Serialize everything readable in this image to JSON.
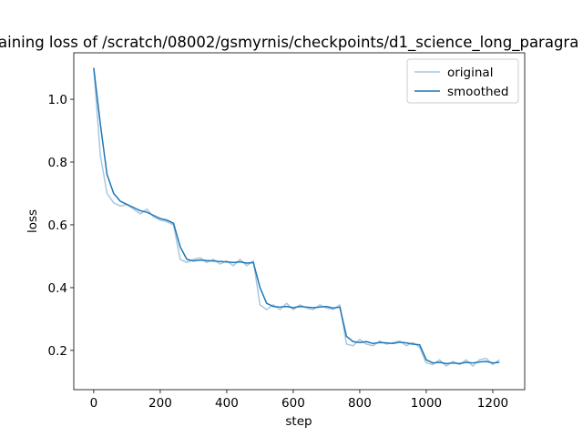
{
  "chart_data": {
    "type": "line",
    "title": "aining loss of /scratch/08002/gsmyrnis/checkpoints/d1_science_long_paragra",
    "x_label": "step",
    "y_label": "loss",
    "x": [
      0,
      20,
      40,
      60,
      80,
      100,
      120,
      140,
      160,
      180,
      200,
      220,
      240,
      260,
      280,
      300,
      320,
      340,
      360,
      380,
      400,
      420,
      440,
      460,
      480,
      500,
      520,
      540,
      560,
      580,
      600,
      620,
      640,
      660,
      680,
      700,
      720,
      740,
      760,
      780,
      800,
      820,
      840,
      860,
      880,
      900,
      920,
      940,
      960,
      980,
      1000,
      1020,
      1040,
      1060,
      1080,
      1100,
      1120,
      1140,
      1160,
      1180,
      1200,
      1220
    ],
    "series": [
      {
        "name": "original",
        "color": "#a6c8e1",
        "values": [
          1.1,
          0.82,
          0.7,
          0.67,
          0.66,
          0.665,
          0.65,
          0.635,
          0.65,
          0.625,
          0.615,
          0.61,
          0.6,
          0.49,
          0.48,
          0.49,
          0.495,
          0.48,
          0.49,
          0.475,
          0.485,
          0.47,
          0.49,
          0.47,
          0.485,
          0.345,
          0.33,
          0.345,
          0.33,
          0.35,
          0.33,
          0.345,
          0.335,
          0.33,
          0.345,
          0.335,
          0.33,
          0.345,
          0.22,
          0.215,
          0.235,
          0.22,
          0.215,
          0.23,
          0.22,
          0.225,
          0.23,
          0.215,
          0.225,
          0.21,
          0.16,
          0.155,
          0.17,
          0.15,
          0.165,
          0.155,
          0.17,
          0.15,
          0.17,
          0.175,
          0.155,
          0.17
        ]
      },
      {
        "name": "smoothed",
        "color": "#1f77b4",
        "values": [
          1.1,
          0.92,
          0.76,
          0.7,
          0.675,
          0.665,
          0.655,
          0.645,
          0.64,
          0.63,
          0.62,
          0.615,
          0.605,
          0.53,
          0.49,
          0.485,
          0.488,
          0.486,
          0.485,
          0.483,
          0.482,
          0.48,
          0.482,
          0.478,
          0.48,
          0.4,
          0.35,
          0.34,
          0.338,
          0.34,
          0.336,
          0.34,
          0.338,
          0.336,
          0.338,
          0.34,
          0.335,
          0.338,
          0.245,
          0.228,
          0.225,
          0.228,
          0.222,
          0.225,
          0.224,
          0.222,
          0.226,
          0.224,
          0.22,
          0.218,
          0.17,
          0.16,
          0.162,
          0.158,
          0.16,
          0.158,
          0.162,
          0.16,
          0.163,
          0.165,
          0.16,
          0.162
        ]
      }
    ],
    "xlim": [
      -60,
      1296
    ],
    "ylim": [
      0.075,
      1.148
    ],
    "xticks": [
      0,
      200,
      400,
      600,
      800,
      1000,
      1200
    ],
    "yticks": [
      0.2,
      0.4,
      0.6,
      0.8,
      {
        "value": 1,
        "label": "1.0"
      }
    ],
    "legend": "upper right"
  }
}
